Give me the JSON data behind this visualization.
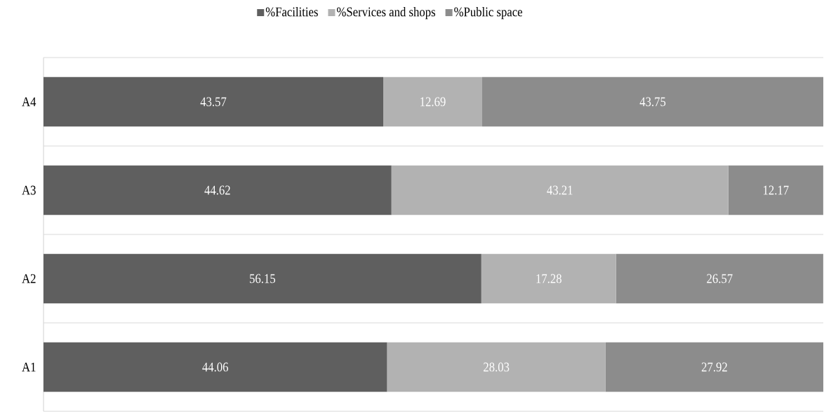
{
  "chart_data": {
    "type": "bar",
    "orientation": "horizontal",
    "stacked": true,
    "categories": [
      "A4",
      "A3",
      "A2",
      "A1"
    ],
    "series": [
      {
        "name": "%Facilities",
        "color": "#5f5f5f",
        "values": [
          43.57,
          44.62,
          56.15,
          44.06
        ]
      },
      {
        "name": "%Services and shops",
        "color": "#b2b2b2",
        "values": [
          12.69,
          43.21,
          17.28,
          28.03
        ]
      },
      {
        "name": "%Public space",
        "color": "#8c8c8c",
        "values": [
          43.75,
          12.17,
          26.57,
          27.92
        ]
      }
    ],
    "data_labels": true,
    "tick_labels": "y",
    "grid": "y",
    "legend": "top"
  }
}
